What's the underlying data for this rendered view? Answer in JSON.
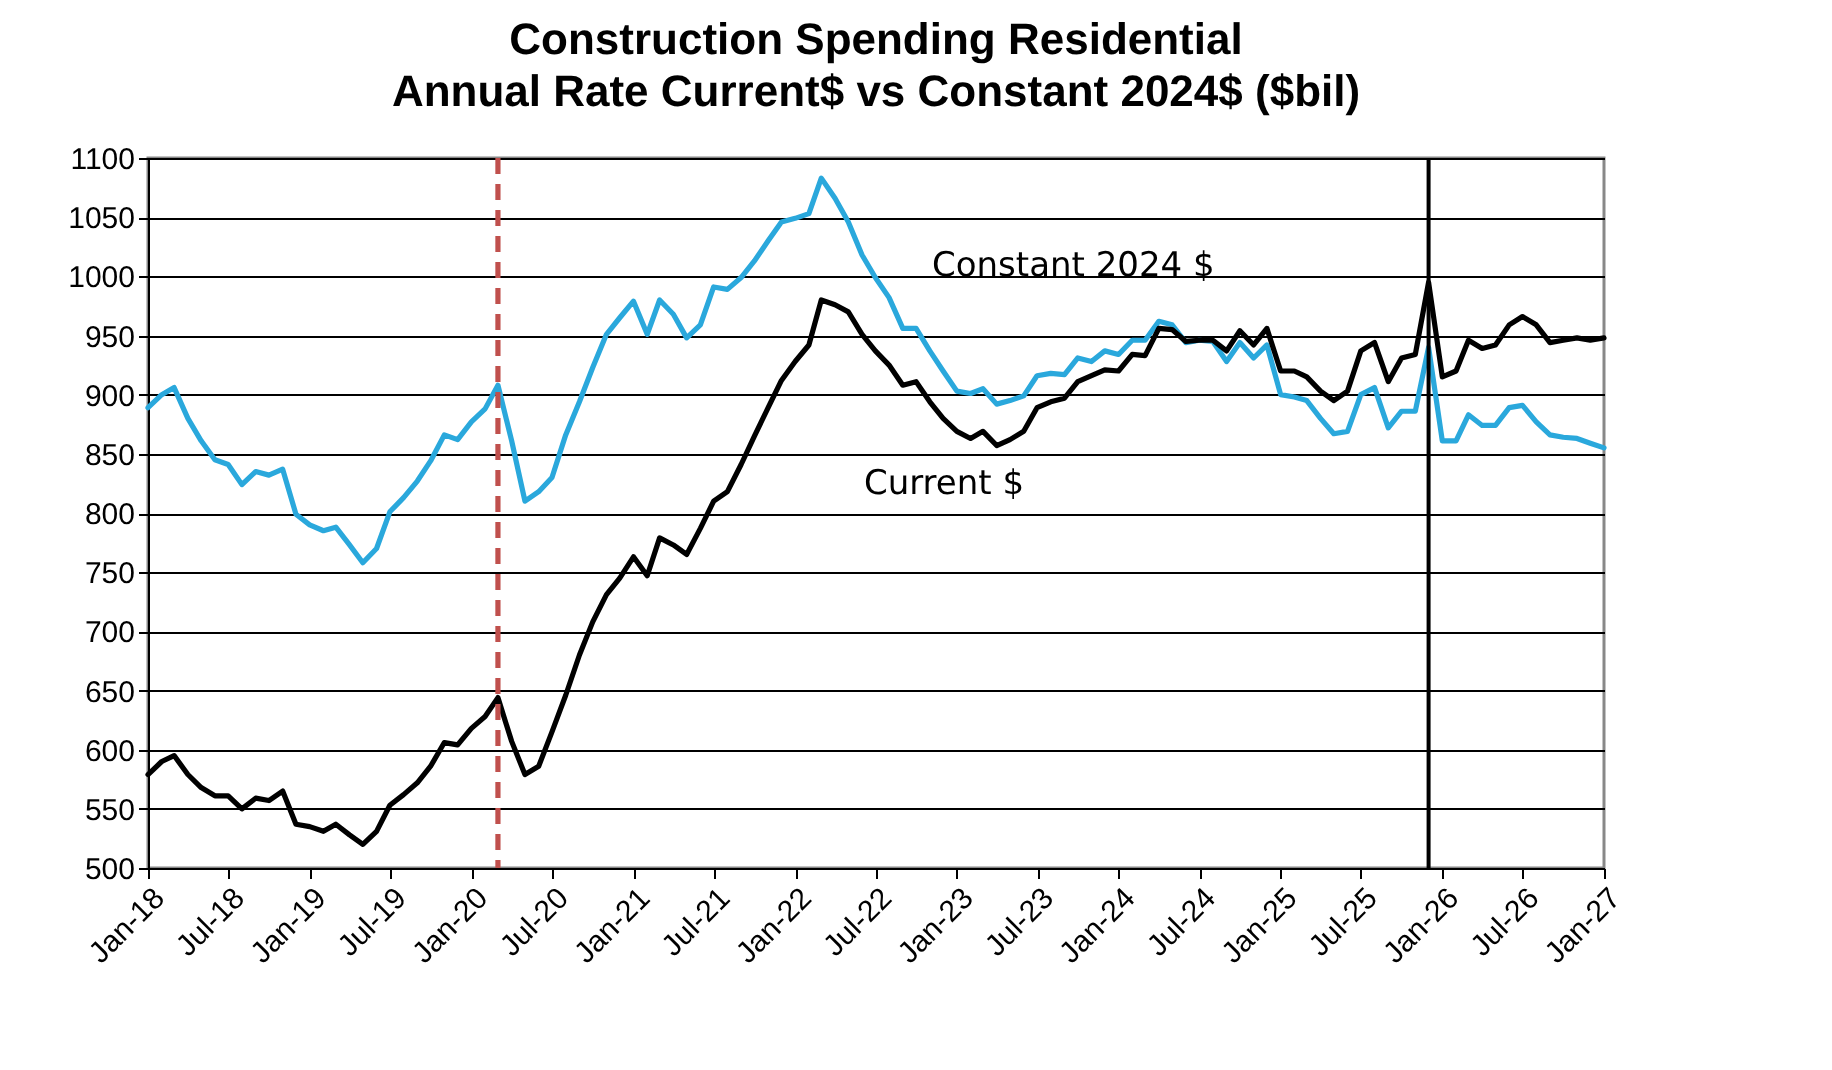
{
  "chart_data": {
    "type": "line",
    "title": "Construction Spending Residential",
    "subtitle": "Annual Rate Current$ vs Constant 2024$ ($bil)",
    "x": [
      "2018-01",
      "2018-02",
      "2018-03",
      "2018-04",
      "2018-05",
      "2018-06",
      "2018-07",
      "2018-08",
      "2018-09",
      "2018-10",
      "2018-11",
      "2018-12",
      "2019-01",
      "2019-02",
      "2019-03",
      "2019-04",
      "2019-05",
      "2019-06",
      "2019-07",
      "2019-08",
      "2019-09",
      "2019-10",
      "2019-11",
      "2019-12",
      "2020-01",
      "2020-02",
      "2020-03",
      "2020-04",
      "2020-05",
      "2020-06",
      "2020-07",
      "2020-08",
      "2020-09",
      "2020-10",
      "2020-11",
      "2020-12",
      "2021-01",
      "2021-02",
      "2021-03",
      "2021-04",
      "2021-05",
      "2021-06",
      "2021-07",
      "2021-08",
      "2021-09",
      "2021-10",
      "2021-11",
      "2021-12",
      "2022-01",
      "2022-02",
      "2022-03",
      "2022-04",
      "2022-05",
      "2022-06",
      "2022-07",
      "2022-08",
      "2022-09",
      "2022-10",
      "2022-11",
      "2022-12",
      "2023-01",
      "2023-02",
      "2023-03",
      "2023-04",
      "2023-05",
      "2023-06",
      "2023-07",
      "2023-08",
      "2023-09",
      "2023-10",
      "2023-11",
      "2023-12",
      "2024-01",
      "2024-02",
      "2024-03",
      "2024-04",
      "2024-05",
      "2024-06",
      "2024-07",
      "2024-08",
      "2024-09",
      "2024-10",
      "2024-11",
      "2024-12",
      "2025-01",
      "2025-02",
      "2025-03",
      "2025-04",
      "2025-05",
      "2025-06",
      "2025-07",
      "2025-08",
      "2025-09",
      "2025-10",
      "2025-11",
      "2025-12",
      "2026-01",
      "2026-02",
      "2026-03",
      "2026-04",
      "2026-05",
      "2026-06",
      "2026-07",
      "2026-08",
      "2026-09",
      "2026-10",
      "2026-11",
      "2026-12",
      "2027-01"
    ],
    "series": [
      {
        "name": "Constant 2024 $",
        "color": "#2aa8dc",
        "values": [
          889,
          900,
          906,
          880,
          861,
          845,
          841,
          824,
          835,
          832,
          837,
          799,
          790,
          785,
          788,
          773,
          758,
          770,
          801,
          813,
          827,
          844,
          866,
          862,
          877,
          888,
          908,
          861,
          810,
          818,
          830,
          866,
          894,
          923,
          951,
          965,
          979,
          951,
          980,
          968,
          948,
          959,
          991,
          989,
          999,
          1013,
          1030,
          1046,
          1049,
          1053,
          1083,
          1066,
          1046,
          1018,
          999,
          982,
          956,
          956,
          937,
          920,
          903,
          901,
          905,
          892,
          895,
          899,
          916,
          918,
          917,
          931,
          928,
          937,
          934,
          946,
          946,
          962,
          959,
          944,
          946,
          945,
          928,
          944,
          931,
          942,
          900,
          898,
          895,
          880,
          867,
          869,
          900,
          906,
          872,
          886,
          886,
          940,
          861,
          861,
          883,
          874,
          874,
          889,
          891,
          877,
          866,
          864,
          863,
          859,
          855
        ]
      },
      {
        "name": "Current $",
        "color": "#000000",
        "values": [
          579,
          590,
          595,
          579,
          568,
          561,
          561,
          550,
          559,
          557,
          565,
          537,
          535,
          531,
          537,
          528,
          520,
          531,
          553,
          562,
          572,
          586,
          606,
          604,
          618,
          628,
          644,
          607,
          579,
          586,
          615,
          646,
          680,
          708,
          731,
          745,
          763,
          747,
          779,
          773,
          765,
          787,
          810,
          818,
          841,
          865,
          889,
          912,
          928,
          942,
          980,
          976,
          970,
          951,
          937,
          925,
          908,
          911,
          894,
          880,
          869,
          863,
          869,
          857,
          862,
          869,
          889,
          894,
          897,
          911,
          916,
          921,
          920,
          934,
          933,
          956,
          955,
          945,
          946,
          946,
          937,
          954,
          942,
          956,
          920,
          920,
          915,
          903,
          895,
          903,
          937,
          944,
          911,
          931,
          934,
          995,
          915,
          920,
          946,
          939,
          942,
          959,
          966,
          959,
          944,
          946,
          948,
          946,
          948
        ]
      }
    ],
    "xlim": [
      "2018-01",
      "2027-01"
    ],
    "xticks": [
      {
        "value": "2018-01",
        "label": "Jan-18"
      },
      {
        "value": "2018-07",
        "label": "Jul-18"
      },
      {
        "value": "2019-01",
        "label": "Jan-19"
      },
      {
        "value": "2019-07",
        "label": "Jul-19"
      },
      {
        "value": "2020-01",
        "label": "Jan-20"
      },
      {
        "value": "2020-07",
        "label": "Jul-20"
      },
      {
        "value": "2021-01",
        "label": "Jan-21"
      },
      {
        "value": "2021-07",
        "label": "Jul-21"
      },
      {
        "value": "2022-01",
        "label": "Jan-22"
      },
      {
        "value": "2022-07",
        "label": "Jul-22"
      },
      {
        "value": "2023-01",
        "label": "Jan-23"
      },
      {
        "value": "2023-07",
        "label": "Jul-23"
      },
      {
        "value": "2024-01",
        "label": "Jan-24"
      },
      {
        "value": "2024-07",
        "label": "Jul-24"
      },
      {
        "value": "2025-01",
        "label": "Jan-25"
      },
      {
        "value": "2025-07",
        "label": "Jul-25"
      },
      {
        "value": "2026-01",
        "label": "Jan-26"
      },
      {
        "value": "2026-07",
        "label": "Jul-26"
      },
      {
        "value": "2027-01",
        "label": "Jan-27"
      }
    ],
    "ylim": [
      500,
      1100
    ],
    "yticks": [
      500,
      550,
      600,
      650,
      700,
      750,
      800,
      850,
      900,
      950,
      1000,
      1050,
      1100
    ],
    "grid": "y",
    "legend": false,
    "ref_lines": [
      {
        "axis": "x",
        "value": "2020-03",
        "color": "#c0504d",
        "line_style": "dashed"
      },
      {
        "axis": "x",
        "value": "2025-12",
        "color": "#000000",
        "line_style": "solid"
      }
    ]
  }
}
